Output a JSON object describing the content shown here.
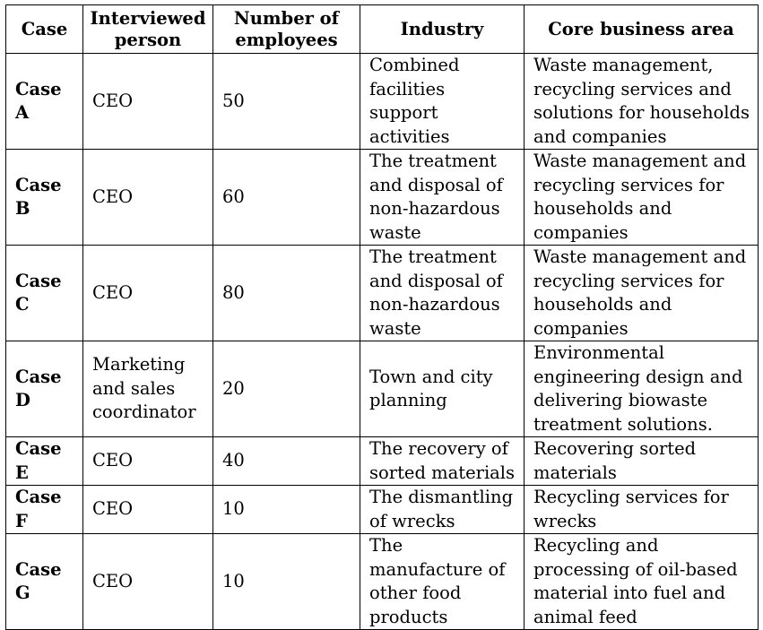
{
  "headers": [
    "Case",
    "Interviewed person",
    "Number of employees",
    "Industry",
    "Core business area"
  ],
  "rows": [
    [
      "Case A",
      "CEO",
      "50",
      "Combined facilities support activities",
      "Waste management, recycling services and solutions for households and companies"
    ],
    [
      "Case B",
      "CEO",
      "60",
      "The treatment and disposal of non-hazardous waste",
      "Waste management and recycling services for households and companies"
    ],
    [
      "Case C",
      "CEO",
      "80",
      "The treatment and disposal of non-hazardous waste",
      "Waste management and recycling services for households and companies"
    ],
    [
      "Case D",
      "Marketing and sales coordinator",
      "20",
      "Town and city planning",
      "Environmental engineering design and delivering biowaste treatment solutions."
    ],
    [
      "Case E",
      "CEO",
      "40",
      "The recovery of sorted materials",
      "Recovering sorted materials"
    ],
    [
      "Case F",
      "CEO",
      "10",
      "The dismantling of wrecks",
      "Recycling services for wrecks"
    ],
    [
      "Case G",
      "CEO",
      "10",
      "The manufacture of other food products",
      "Recycling and processing of oil-based material into fuel and animal feed"
    ]
  ]
}
